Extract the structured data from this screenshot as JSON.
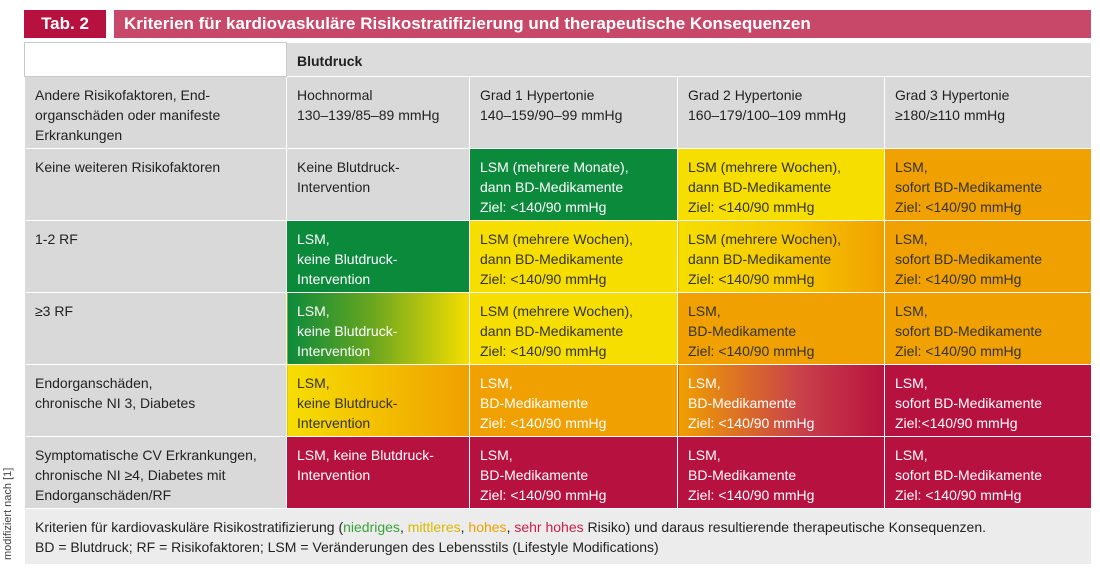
{
  "side_note": "modifiziert nach [1]",
  "header": {
    "tab_label": "Tab. 2",
    "title": "Kriterien für kardiovaskuläre Risikostratifizierung und therapeutische Konsequenzen"
  },
  "table": {
    "blutdruck_label": "Blutdruck",
    "row_header_title": [
      "Andere Risikofaktoren, End-",
      "organschäden oder manifeste",
      "Erkrankungen"
    ],
    "columns": [
      {
        "line1": "Hochnormal",
        "line2": "130–139/85–89 mmHg"
      },
      {
        "line1": "Grad 1 Hypertonie",
        "line2": "140–159/90–99 mmHg"
      },
      {
        "line1": "Grad 2 Hypertonie",
        "line2": "160–179/100–109 mmHg"
      },
      {
        "line1": "Grad 3 Hypertonie",
        "line2": "≥180/≥110 mmHg"
      }
    ],
    "rows": [
      {
        "label": [
          "Keine weiteren Risikofaktoren"
        ],
        "cells": [
          [
            "Keine Blutdruck-",
            "Intervention"
          ],
          [
            "LSM (mehrere Monate),",
            "dann BD-Medikamente",
            "Ziel: <140/90 mmHg"
          ],
          [
            "LSM (mehrere Wochen),",
            "dann BD-Medikamente",
            "Ziel: <140/90 mmHg"
          ],
          [
            "LSM,",
            "sofort BD-Medikamente",
            "Ziel: <140/90 mmHg"
          ]
        ]
      },
      {
        "label": [
          "1-2 RF"
        ],
        "cells": [
          [
            "LSM,",
            "keine Blutdruck-",
            "Intervention"
          ],
          [
            "LSM (mehrere Wochen),",
            "dann BD-Medikamente",
            "Ziel: <140/90 mmHg"
          ],
          [
            "LSM (mehrere Wochen),",
            "dann BD-Medikamente",
            "Ziel: <140/90 mmHg"
          ],
          [
            "LSM,",
            "sofort BD-Medikamente",
            "Ziel: <140/90 mmHg"
          ]
        ]
      },
      {
        "label": [
          "≥3 RF"
        ],
        "cells": [
          [
            "LSM,",
            "keine Blutdruck-",
            "Intervention"
          ],
          [
            "LSM (mehrere Wochen),",
            "dann BD-Medikamente",
            "Ziel: <140/90 mmHg"
          ],
          [
            "LSM,",
            "BD-Medikamente",
            "Ziel: <140/90 mmHg"
          ],
          [
            "LSM,",
            "sofort BD-Medikamente",
            "Ziel: <140/90 mmHg"
          ]
        ]
      },
      {
        "label": [
          "Endorganschäden,",
          "chronische NI 3, Diabetes"
        ],
        "cells": [
          [
            "LSM,",
            "keine Blutdruck-",
            "Intervention"
          ],
          [
            "LSM,",
            "BD-Medikamente",
            "Ziel: <140/90 mmHg"
          ],
          [
            "LSM,",
            "BD-Medikamente",
            "Ziel: <140/90 mmHg"
          ],
          [
            "LSM,",
            "sofort BD-Medikamente",
            "Ziel:<140/90 mmHg"
          ]
        ]
      },
      {
        "label": [
          "Symptomatische CV Erkrankungen,",
          "chronische NI ≥4, Diabetes mit",
          "Endorganschäden/RF"
        ],
        "cells": [
          [
            "LSM, keine Blutdruck-",
            "Intervention"
          ],
          [
            "LSM,",
            "BD-Medikamente",
            "Ziel: <140/90 mmHg"
          ],
          [
            "LSM,",
            "BD-Medikamente",
            "Ziel: <140/90 mmHg"
          ],
          [
            "LSM,",
            "sofort BD-Medikamente",
            "Ziel: <140/90 mmHg"
          ]
        ]
      }
    ]
  },
  "footer": {
    "line1_prefix": "Kriterien für kardiovaskuläre Risikostratifizierung (",
    "risk_low": "niedriges",
    "sep1": ", ",
    "risk_mid": "mittleres",
    "sep2": ", ",
    "risk_high": "hohes",
    "sep3": ", ",
    "risk_very_high": "sehr hohes",
    "line1_suffix": " Risiko) und daraus resultierende therapeutische Konsequenzen.",
    "line2": "BD = Blutdruck; RF = Risikofaktoren; LSM = Veränderungen des Lebensstils (Lifestyle Modifications)"
  },
  "colors": {
    "green": "#0c8a3c",
    "yellow": "#f6de00",
    "orange": "#f0a000",
    "red": "#b7123f",
    "gray": "#d9d9d9"
  }
}
